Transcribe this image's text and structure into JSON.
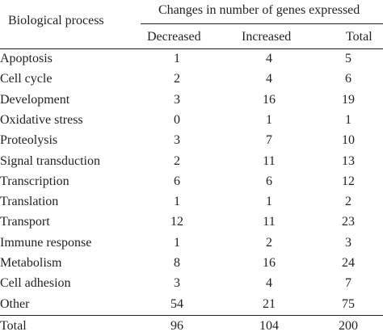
{
  "header": {
    "process": "Biological process",
    "changes": "Changes in number of genes expressed",
    "decreased": "Decreased",
    "increased": "Increased",
    "total": "Total"
  },
  "rows": [
    {
      "process": "Apoptosis",
      "decreased": "1",
      "increased": "4",
      "total": "5"
    },
    {
      "process": "Cell cycle",
      "decreased": "2",
      "increased": "4",
      "total": "6"
    },
    {
      "process": "Development",
      "decreased": "3",
      "increased": "16",
      "total": "19"
    },
    {
      "process": "Oxidative stress",
      "decreased": "0",
      "increased": "1",
      "total": "1"
    },
    {
      "process": "Proteolysis",
      "decreased": "3",
      "increased": "7",
      "total": "10"
    },
    {
      "process": "Signal transduction",
      "decreased": "2",
      "increased": "11",
      "total": "13"
    },
    {
      "process": "Transcription",
      "decreased": "6",
      "increased": "6",
      "total": "12"
    },
    {
      "process": "Translation",
      "decreased": "1",
      "increased": "1",
      "total": "2"
    },
    {
      "process": "Transport",
      "decreased": "12",
      "increased": "11",
      "total": "23"
    },
    {
      "process": "Immune response",
      "decreased": "1",
      "increased": "2",
      "total": "3"
    },
    {
      "process": "Metabolism",
      "decreased": "8",
      "increased": "16",
      "total": "24"
    },
    {
      "process": "Cell adhesion",
      "decreased": "3",
      "increased": "4",
      "total": "7"
    },
    {
      "process": "Other",
      "decreased": "54",
      "increased": "21",
      "total": "75"
    },
    {
      "process": "Total",
      "decreased": "96",
      "increased": "104",
      "total": "200"
    }
  ]
}
